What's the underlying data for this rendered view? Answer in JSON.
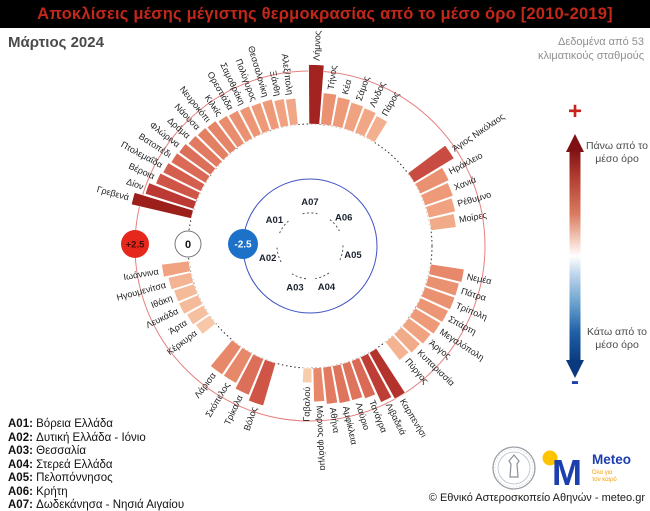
{
  "title": "Αποκλίσεις μέσης μέγιστης θερμοκρασίας από το μέσο όρο [2010-2019]",
  "subtitle_left": "Μάρτιος 2024",
  "subtitle_right": "Δεδομένα από 53 κλιματικούς σταθμούς",
  "scale_legend": {
    "plus": "+",
    "minus": "-",
    "above": "Πάνω από το μέσο όρο",
    "below": "Κάτω από το μέσο όρο"
  },
  "regions_legend": [
    {
      "code": "A01:",
      "name": "Βόρεια Ελλάδα"
    },
    {
      "code": "A02:",
      "name": "Δυτική Ελλάδα - Ιόνιο"
    },
    {
      "code": "A03:",
      "name": "Θεσσαλία"
    },
    {
      "code": "A04:",
      "name": "Στερεά Ελλάδα"
    },
    {
      "code": "A05:",
      "name": "Πελοπόννησος"
    },
    {
      "code": "A06:",
      "name": "Κρήτη"
    },
    {
      "code": "A07:",
      "name": "Δωδεκάνησα - Νησιά Αιγαίου"
    }
  ],
  "footer": {
    "meteo_logo_m": "M",
    "meteo_logo_text": "Meteo",
    "meteo_tagline": "Όλα για τον καιρό",
    "copyright": "© Εθνικό Αστεροσκοπείο Αθηνών - meteo.gr"
  },
  "colors": {
    "title_red": "#c2271a",
    "ring_outer_red": "#e58080",
    "ring_zero_black": "#333333",
    "ring_inner_blue": "#4053c2",
    "badge_plus_fill": "#e5281b",
    "badge_plus_text": "#470c06",
    "badge_zero_fill": "#ffffff",
    "badge_zero_text": "#111111",
    "badge_minus_fill": "#1d71c9",
    "badge_minus_text": "#ffffff",
    "meteo_blue": "#1c3fae",
    "meteo_yellow": "#ffc400",
    "meteo_orange": "#f2a20f"
  },
  "chart_data": {
    "type": "bar",
    "subtype": "radial-bar",
    "units": "°C anomaly",
    "title": "Αποκλίσεις μέσης μέγιστης θερμοκρασίας από το μέσο όρο [2010-2019]",
    "period": "Μάρτιος 2024",
    "radial_axis_range": [
      -2.5,
      2.5
    ],
    "rings": [
      {
        "label": "+2.5",
        "value": 2.5
      },
      {
        "label": "0",
        "value": 0
      },
      {
        "label": "-2.5",
        "value": -2.5
      }
    ],
    "region_labels": [
      {
        "code": "A07",
        "angle": 0
      },
      {
        "code": "A06",
        "angle": 50
      },
      {
        "code": "A05",
        "angle": 102
      },
      {
        "code": "A04",
        "angle": 158
      },
      {
        "code": "A03",
        "angle": 200
      },
      {
        "code": "A02",
        "angle": 254
      },
      {
        "code": "A01",
        "angle": 306
      }
    ],
    "color_scale_stops": [
      [
        0.0,
        "#fdeadb"
      ],
      [
        0.7,
        "#f8cdae"
      ],
      [
        1.1,
        "#f4b392"
      ],
      [
        1.4,
        "#ee9a78"
      ],
      [
        1.7,
        "#e37f63"
      ],
      [
        2.0,
        "#d55f4e"
      ],
      [
        2.3,
        "#c2423a"
      ],
      [
        2.6,
        "#ad2a25"
      ],
      [
        3.0,
        "#971b18"
      ]
    ],
    "stations": [
      {
        "name": "Λήμνος",
        "region": "A07",
        "angle": 2,
        "value": 2.8
      },
      {
        "name": "Τήνος",
        "region": "A07",
        "angle": 7.5,
        "value": 1.5
      },
      {
        "name": "Κέα",
        "region": "A07",
        "angle": 13,
        "value": 1.4
      },
      {
        "name": "Σάμος",
        "region": "A07",
        "angle": 18.5,
        "value": 1.3
      },
      {
        "name": "Λίνδος",
        "region": "A07",
        "angle": 24,
        "value": 1.25
      },
      {
        "name": "Πάρος",
        "region": "A07",
        "angle": 29.5,
        "value": 1.15
      },
      {
        "name": "Άγιος Νικόλαος",
        "region": "A06",
        "angle": 56,
        "value": 2.2
      },
      {
        "name": "Ηράκλειο",
        "region": "A06",
        "angle": 62,
        "value": 1.5
      },
      {
        "name": "Χανιά",
        "region": "A06",
        "angle": 68,
        "value": 1.4
      },
      {
        "name": "Ρέθυμνο",
        "region": "A06",
        "angle": 74,
        "value": 1.3
      },
      {
        "name": "Μοίρες",
        "region": "A06",
        "angle": 80,
        "value": 1.2
      },
      {
        "name": "Νεμέα",
        "region": "A05",
        "angle": 101,
        "value": 1.6
      },
      {
        "name": "Πάτρα",
        "region": "A05",
        "angle": 106.5,
        "value": 1.5
      },
      {
        "name": "Τρίπολη",
        "region": "A05",
        "angle": 112,
        "value": 1.5
      },
      {
        "name": "Σπάρτη",
        "region": "A05",
        "angle": 117.5,
        "value": 1.45
      },
      {
        "name": "Μεγαλόπολη",
        "region": "A05",
        "angle": 123,
        "value": 1.4
      },
      {
        "name": "Άργος",
        "region": "A05",
        "angle": 128.5,
        "value": 1.3
      },
      {
        "name": "Κυπαρισσία",
        "region": "A05",
        "angle": 134,
        "value": 1.2
      },
      {
        "name": "Πύργος",
        "region": "A05",
        "angle": 139.5,
        "value": 1.1
      },
      {
        "name": "Καρπενήσι",
        "region": "A04",
        "angle": 149,
        "value": 2.5
      },
      {
        "name": "Λιβαδειά",
        "region": "A04",
        "angle": 153.6,
        "value": 2.35
      },
      {
        "name": "Τανάγρα",
        "region": "A04",
        "angle": 158.2,
        "value": 1.9
      },
      {
        "name": "Λαύριο",
        "region": "A04",
        "angle": 162.8,
        "value": 1.8
      },
      {
        "name": "Αμφίκλεια",
        "region": "A04",
        "angle": 167.4,
        "value": 1.8
      },
      {
        "name": "Αθήνα",
        "region": "A04",
        "angle": 172,
        "value": 1.75
      },
      {
        "name": "Μόρνος φράγμα",
        "region": "A04",
        "angle": 176.6,
        "value": 1.6
      },
      {
        "name": "Γαβαλού",
        "region": "A04",
        "angle": 181.2,
        "value": 0.7
      },
      {
        "name": "Βόλος",
        "region": "A03",
        "angle": 199,
        "value": 2.1
      },
      {
        "name": "Τρίκαλα",
        "region": "A03",
        "angle": 205,
        "value": 1.85
      },
      {
        "name": "Σκόπελος",
        "region": "A03",
        "angle": 211,
        "value": 1.6
      },
      {
        "name": "Λάρισα",
        "region": "A03",
        "angle": 217,
        "value": 1.6
      },
      {
        "name": "Κέρκυρα",
        "region": "A02",
        "angle": 233,
        "value": 0.8
      },
      {
        "name": "Άρτα",
        "region": "A02",
        "angle": 238.5,
        "value": 0.9
      },
      {
        "name": "Λευκάδα",
        "region": "A02",
        "angle": 244,
        "value": 1.0
      },
      {
        "name": "Ιθάκη",
        "region": "A02",
        "angle": 249.5,
        "value": 1.0
      },
      {
        "name": "Ηγουμενίτσα",
        "region": "A02",
        "angle": 255,
        "value": 1.1
      },
      {
        "name": "Ιωάννινα",
        "region": "A02",
        "angle": 260.5,
        "value": 1.3
      },
      {
        "name": "Γρεβενά",
        "region": "A01",
        "angle": 285,
        "value": 2.9
      },
      {
        "name": "Δίον",
        "region": "A01",
        "angle": 289.5,
        "value": 2.4
      },
      {
        "name": "Βέροια",
        "region": "A01",
        "angle": 294,
        "value": 2.1
      },
      {
        "name": "Πτολεμαΐδα",
        "region": "A01",
        "angle": 298.5,
        "value": 2.0
      },
      {
        "name": "Βατοπέδι",
        "region": "A01",
        "angle": 303,
        "value": 1.9
      },
      {
        "name": "Φλώρινα",
        "region": "A01",
        "angle": 307.5,
        "value": 1.85
      },
      {
        "name": "Δράμα",
        "region": "A01",
        "angle": 312,
        "value": 1.75
      },
      {
        "name": "Νάουσα",
        "region": "A01",
        "angle": 316.5,
        "value": 1.7
      },
      {
        "name": "Νευροκόπι",
        "region": "A01",
        "angle": 321,
        "value": 1.65
      },
      {
        "name": "Κιλκίς",
        "region": "A01",
        "angle": 325.5,
        "value": 1.55
      },
      {
        "name": "Ορεστιάδα",
        "region": "A01",
        "angle": 330,
        "value": 1.5
      },
      {
        "name": "Σαμοθράκη",
        "region": "A01",
        "angle": 334.5,
        "value": 1.45
      },
      {
        "name": "Πολύγυρος",
        "region": "A01",
        "angle": 339,
        "value": 1.4
      },
      {
        "name": "Θεσσαλονίκη",
        "region": "A01",
        "angle": 343.5,
        "value": 1.4
      },
      {
        "name": "Ξάνθη",
        "region": "A01",
        "angle": 348,
        "value": 1.3
      },
      {
        "name": "Αλεξ/πολη",
        "region": "A01",
        "angle": 352.5,
        "value": 1.25
      }
    ]
  }
}
